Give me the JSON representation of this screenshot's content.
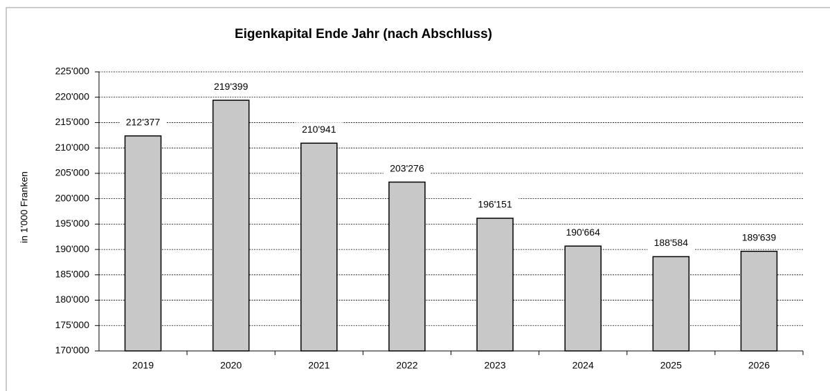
{
  "chart_data": {
    "type": "bar",
    "title": "Eigenkapital Ende Jahr (nach Abschluss)",
    "y_label": "in 1'000 Franken",
    "categories": [
      "2019",
      "2020",
      "2021",
      "2022",
      "2023",
      "2024",
      "2025",
      "2026"
    ],
    "values": [
      212377,
      219399,
      210941,
      203276,
      196151,
      190664,
      188584,
      189639
    ],
    "value_labels": [
      "212'377",
      "219'399",
      "210'941",
      "203'276",
      "196'151",
      "190'664",
      "188'584",
      "189'639"
    ],
    "color": "#c8c8c8",
    "ylim": [
      170000,
      225000
    ],
    "yticks": [
      {
        "value": 170000,
        "label": "170'000"
      },
      {
        "value": 175000,
        "label": "175'000"
      },
      {
        "value": 180000,
        "label": "180'000"
      },
      {
        "value": 185000,
        "label": "185'000"
      },
      {
        "value": 190000,
        "label": "190'000"
      },
      {
        "value": 195000,
        "label": "195'000"
      },
      {
        "value": 200000,
        "label": "200'000"
      },
      {
        "value": 205000,
        "label": "205'000"
      },
      {
        "value": 210000,
        "label": "210'000"
      },
      {
        "value": 215000,
        "label": "215'000"
      },
      {
        "value": 220000,
        "label": "220'000"
      },
      {
        "value": 225000,
        "label": "225'000"
      }
    ],
    "grid": true
  }
}
